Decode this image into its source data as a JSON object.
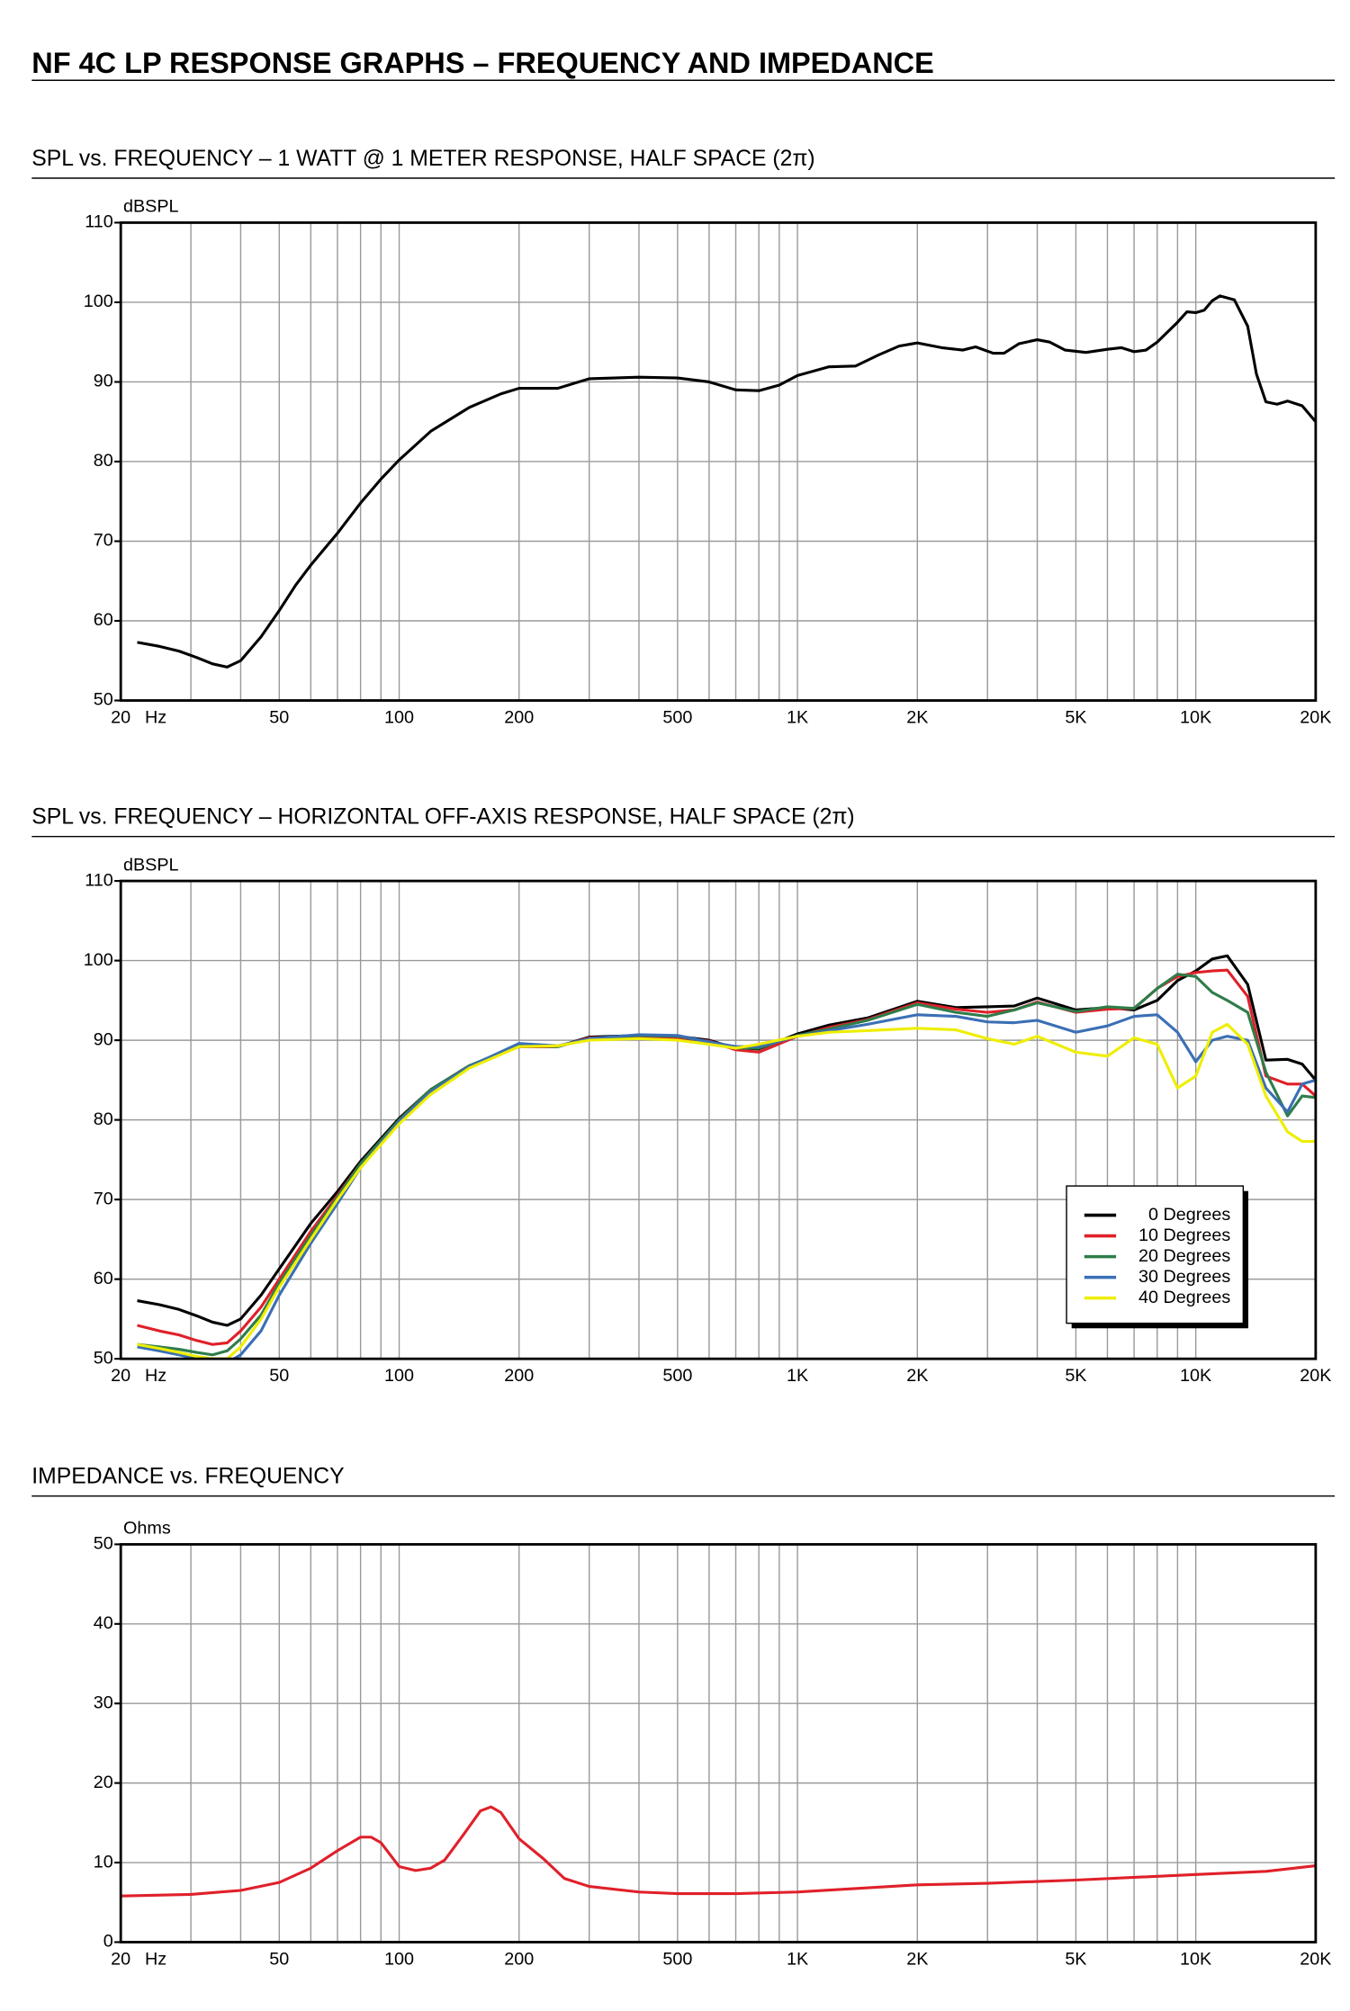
{
  "page_title": "NF 4C LP RESPONSE GRAPHS – FREQUENCY AND IMPEDANCE",
  "chart_data": [
    {
      "type": "line",
      "title": "SPL vs. FREQUENCY – 1 WATT @ 1 METER RESPONSE, HALF SPACE (2π)",
      "ylabel": "dBSPL",
      "xlabel": "Hz",
      "xscale": "log",
      "grid": true,
      "xlim": [
        20,
        20000
      ],
      "ylim": [
        50,
        110
      ],
      "xticks": [
        20,
        50,
        100,
        200,
        500,
        {
          "value": 1000,
          "label": "1K"
        },
        {
          "value": 2000,
          "label": "2K"
        },
        {
          "value": 5000,
          "label": "5K"
        },
        {
          "value": 10000,
          "label": "10K"
        },
        {
          "value": 20000,
          "label": "20K"
        }
      ],
      "xminorticks": [
        30,
        40,
        60,
        70,
        80,
        90,
        300,
        400,
        600,
        700,
        800,
        900,
        3000,
        4000,
        6000,
        7000,
        8000,
        9000
      ],
      "yticks": [
        50,
        60,
        70,
        80,
        90,
        100,
        110
      ],
      "x": [
        22,
        25,
        28,
        31,
        34,
        37,
        40,
        45,
        50,
        55,
        60,
        70,
        80,
        90,
        100,
        120,
        150,
        180,
        200,
        250,
        300,
        400,
        500,
        600,
        700,
        800,
        900,
        1000,
        1200,
        1400,
        1600,
        1800,
        2000,
        2300,
        2600,
        2800,
        3100,
        3300,
        3600,
        4000,
        4300,
        4700,
        5300,
        6000,
        6500,
        7000,
        7500,
        8000,
        9000,
        9500,
        10000,
        10500,
        11000,
        11500,
        12500,
        13500,
        14200,
        15000,
        16000,
        17000,
        18500,
        20000
      ],
      "color": "#000000",
      "values": [
        57.3,
        56.8,
        56.2,
        55.4,
        54.6,
        54.2,
        55.0,
        58.0,
        61.3,
        64.5,
        67.0,
        71.0,
        74.8,
        77.8,
        80.2,
        83.8,
        86.8,
        88.5,
        89.2,
        89.2,
        90.4,
        90.6,
        90.5,
        90.0,
        89.0,
        88.9,
        89.6,
        90.8,
        91.9,
        92.0,
        93.4,
        94.5,
        94.9,
        94.3,
        94.0,
        94.4,
        93.6,
        93.6,
        94.8,
        95.3,
        95.0,
        94.0,
        93.7,
        94.1,
        94.3,
        93.8,
        94.0,
        95.0,
        97.5,
        98.8,
        98.7,
        99.0,
        100.2,
        100.8,
        100.3,
        97.0,
        91.0,
        87.5,
        87.2,
        87.6,
        87.0,
        85.0
      ]
    },
    {
      "type": "line",
      "title": "SPL vs. FREQUENCY – HORIZONTAL OFF-AXIS RESPONSE, HALF SPACE (2π)",
      "ylabel": "dBSPL",
      "xlabel": "Hz",
      "xscale": "log",
      "grid": true,
      "legend": "lower right",
      "xlim": [
        20,
        20000
      ],
      "ylim": [
        50,
        110
      ],
      "xticks": [
        20,
        50,
        100,
        200,
        500,
        {
          "value": 1000,
          "label": "1K"
        },
        {
          "value": 2000,
          "label": "2K"
        },
        {
          "value": 5000,
          "label": "5K"
        },
        {
          "value": 10000,
          "label": "10K"
        },
        {
          "value": 20000,
          "label": "20K"
        }
      ],
      "xminorticks": [
        30,
        40,
        60,
        70,
        80,
        90,
        300,
        400,
        600,
        700,
        800,
        900,
        3000,
        4000,
        6000,
        7000,
        8000,
        9000
      ],
      "yticks": [
        50,
        60,
        70,
        80,
        90,
        100,
        110
      ],
      "x": [
        22,
        25,
        28,
        31,
        34,
        37,
        40,
        45,
        50,
        60,
        70,
        80,
        100,
        120,
        150,
        200,
        250,
        300,
        400,
        500,
        600,
        700,
        800,
        1000,
        1200,
        1500,
        2000,
        2500,
        3000,
        3500,
        4000,
        5000,
        6000,
        7000,
        8000,
        9000,
        10000,
        11000,
        12000,
        13500,
        15000,
        17000,
        18500,
        20000
      ],
      "series": [
        {
          "name": "0 Degrees",
          "color": "#000000",
          "values": [
            57.3,
            56.8,
            56.2,
            55.4,
            54.6,
            54.2,
            55.0,
            58.0,
            61.3,
            67.0,
            71.0,
            74.8,
            80.2,
            83.8,
            86.8,
            89.2,
            89.2,
            90.4,
            90.6,
            90.5,
            90.0,
            89.0,
            88.9,
            90.8,
            91.9,
            92.8,
            94.9,
            94.1,
            94.2,
            94.3,
            95.3,
            93.8,
            94.1,
            93.8,
            95.0,
            97.5,
            98.7,
            100.2,
            100.6,
            97.0,
            87.5,
            87.6,
            87.0,
            85.0
          ]
        },
        {
          "name": "10 Degrees",
          "color": "#e0202a",
          "values": [
            54.2,
            53.5,
            53.0,
            52.3,
            51.8,
            52.0,
            53.5,
            56.5,
            60.0,
            66.0,
            70.5,
            74.5,
            80.0,
            83.8,
            86.8,
            89.2,
            89.2,
            90.3,
            90.4,
            90.3,
            89.9,
            88.8,
            88.5,
            90.5,
            91.6,
            92.6,
            94.7,
            93.9,
            93.5,
            93.8,
            94.8,
            93.5,
            93.9,
            94.0,
            96.5,
            98.0,
            98.5,
            98.7,
            98.8,
            95.5,
            85.5,
            84.5,
            84.5,
            83.0
          ]
        },
        {
          "name": "20 Degrees",
          "color": "#2e7d4a",
          "values": [
            51.8,
            51.5,
            51.2,
            50.8,
            50.5,
            51.0,
            52.5,
            55.5,
            59.5,
            65.5,
            70.3,
            74.5,
            80.0,
            83.8,
            86.8,
            89.4,
            89.2,
            90.2,
            90.6,
            90.5,
            89.8,
            89.0,
            89.0,
            90.6,
            91.4,
            92.5,
            94.5,
            93.5,
            93.0,
            93.8,
            94.7,
            93.6,
            94.2,
            94.0,
            96.5,
            98.3,
            98.0,
            96.0,
            95.0,
            93.5,
            86.0,
            80.5,
            83.0,
            82.8
          ]
        },
        {
          "name": "30 Degrees",
          "color": "#3a6fb5",
          "values": [
            51.5,
            51.0,
            50.5,
            50.0,
            49.5,
            49.5,
            50.5,
            53.5,
            58.0,
            64.5,
            69.5,
            74.0,
            79.8,
            83.5,
            86.7,
            89.6,
            89.3,
            90.2,
            90.7,
            90.6,
            89.8,
            89.2,
            89.2,
            90.5,
            91.2,
            92.0,
            93.2,
            93.0,
            92.3,
            92.2,
            92.5,
            91.0,
            91.8,
            93.0,
            93.2,
            91.0,
            87.3,
            90.0,
            90.5,
            90.0,
            84.0,
            81.0,
            84.5,
            85.0
          ]
        },
        {
          "name": "40 Degrees",
          "color": "#eeee00",
          "values": [
            51.8,
            51.3,
            50.8,
            50.3,
            50.0,
            50.0,
            51.5,
            55.0,
            59.0,
            65.0,
            70.0,
            74.0,
            79.5,
            83.2,
            86.5,
            89.2,
            89.3,
            90.0,
            90.2,
            90.0,
            89.5,
            89.0,
            89.5,
            90.5,
            91.0,
            91.2,
            91.5,
            91.3,
            90.2,
            89.5,
            90.5,
            88.5,
            88.0,
            90.3,
            89.5,
            84.0,
            85.5,
            91.0,
            92.0,
            89.5,
            83.0,
            78.5,
            77.3,
            77.3
          ]
        }
      ]
    },
    {
      "type": "line",
      "title": "IMPEDANCE vs. FREQUENCY",
      "ylabel": "Ohms",
      "xlabel": "Hz",
      "xscale": "log",
      "grid": true,
      "xlim": [
        20,
        20000
      ],
      "ylim": [
        0,
        50
      ],
      "xticks": [
        20,
        50,
        100,
        200,
        500,
        {
          "value": 1000,
          "label": "1K"
        },
        {
          "value": 2000,
          "label": "2K"
        },
        {
          "value": 5000,
          "label": "5K"
        },
        {
          "value": 10000,
          "label": "10K"
        },
        {
          "value": 20000,
          "label": "20K"
        }
      ],
      "xminorticks": [
        30,
        40,
        60,
        70,
        80,
        90,
        300,
        400,
        600,
        700,
        800,
        900,
        3000,
        4000,
        6000,
        7000,
        8000,
        9000
      ],
      "yticks": [
        0,
        10,
        20,
        30,
        40,
        50
      ],
      "x": [
        20,
        30,
        40,
        50,
        60,
        70,
        80,
        85,
        90,
        100,
        110,
        120,
        130,
        145,
        160,
        170,
        180,
        200,
        230,
        260,
        300,
        400,
        500,
        700,
        1000,
        2000,
        3000,
        5000,
        10000,
        15000,
        20000
      ],
      "color": "#e0202a",
      "values": [
        5.8,
        6.0,
        6.5,
        7.5,
        9.3,
        11.5,
        13.2,
        13.2,
        12.5,
        9.5,
        9.0,
        9.3,
        10.3,
        13.5,
        16.5,
        17.0,
        16.3,
        13.0,
        10.5,
        8.0,
        7.0,
        6.3,
        6.1,
        6.1,
        6.3,
        7.2,
        7.4,
        7.8,
        8.5,
        8.9,
        9.6
      ]
    }
  ]
}
